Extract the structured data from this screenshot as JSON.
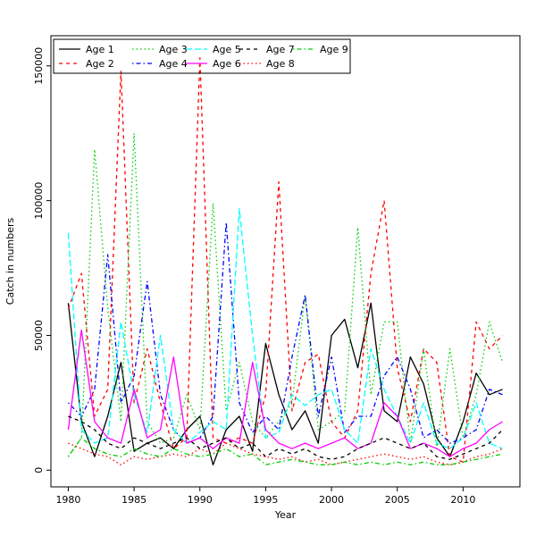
{
  "figure": {
    "background": "#ffffff"
  },
  "chart_data": {
    "type": "line",
    "title": "",
    "xlabel": "Year",
    "ylabel": "Catch in numbers",
    "xlim": [
      1980,
      2013
    ],
    "ylim": [
      0,
      155000
    ],
    "xticks": [
      1980,
      1985,
      1990,
      1995,
      2000,
      2005,
      2010
    ],
    "yticks": [
      0,
      50000,
      100000,
      150000
    ],
    "grid": false,
    "legend": {
      "position": "top-left",
      "ncol": 5,
      "order": "column-major"
    },
    "x": [
      1980,
      1981,
      1982,
      1983,
      1984,
      1985,
      1986,
      1987,
      1988,
      1989,
      1990,
      1991,
      1992,
      1993,
      1994,
      1995,
      1996,
      1997,
      1998,
      1999,
      2000,
      2001,
      2002,
      2003,
      2004,
      2005,
      2006,
      2007,
      2008,
      2009,
      2010,
      2011,
      2012,
      2013
    ],
    "series": [
      {
        "name": "Age 1",
        "color": "#000000",
        "linetype": "solid",
        "values": [
          62000,
          18000,
          5000,
          20000,
          40000,
          7000,
          10000,
          12000,
          8000,
          15000,
          20000,
          2000,
          15000,
          20000,
          7000,
          47000,
          28000,
          15000,
          22000,
          10000,
          50000,
          56000,
          38000,
          62000,
          22000,
          18000,
          42000,
          32000,
          12000,
          5000,
          18000,
          36000,
          28000,
          30000
        ]
      },
      {
        "name": "Age 2",
        "color": "#FF0000",
        "linetype": "dashed",
        "values": [
          60000,
          73000,
          20000,
          30000,
          148000,
          25000,
          45000,
          25000,
          8000,
          12000,
          153000,
          12000,
          10000,
          12000,
          10000,
          28000,
          107000,
          22000,
          40000,
          43000,
          18000,
          12000,
          22000,
          73000,
          100000,
          38000,
          18000,
          45000,
          40000,
          5000,
          3000,
          55000,
          45000,
          50000
        ]
      },
      {
        "name": "Age 3",
        "color": "#00CD00",
        "linetype": "dotted",
        "values": [
          5000,
          12000,
          119000,
          60000,
          18000,
          125000,
          18000,
          10000,
          12000,
          28000,
          15000,
          99000,
          22000,
          40000,
          18000,
          12000,
          18000,
          25000,
          65000,
          15000,
          18000,
          22000,
          90000,
          28000,
          55000,
          55000,
          10000,
          45000,
          8000,
          45000,
          12000,
          28000,
          55000,
          40000
        ]
      },
      {
        "name": "Age 4",
        "color": "#0000FF",
        "linetype": "dotdash",
        "values": [
          25000,
          20000,
          30000,
          80000,
          25000,
          35000,
          70000,
          28000,
          15000,
          10000,
          12000,
          20000,
          92000,
          25000,
          14000,
          20000,
          15000,
          42000,
          65000,
          20000,
          42000,
          14000,
          20000,
          20000,
          35000,
          42000,
          30000,
          12000,
          15000,
          10000,
          12000,
          15000,
          30000,
          28000
        ]
      },
      {
        "name": "Age 5",
        "color": "#00FFFF",
        "linetype": "longdash",
        "values": [
          88000,
          15000,
          10000,
          12000,
          55000,
          28000,
          14000,
          50000,
          15000,
          10000,
          14000,
          18000,
          15000,
          97000,
          50000,
          12000,
          14000,
          28000,
          24000,
          28000,
          30000,
          15000,
          10000,
          45000,
          30000,
          20000,
          10000,
          25000,
          10000,
          8000,
          12000,
          25000,
          10000,
          8000
        ]
      },
      {
        "name": "Age 6",
        "color": "#FF00FF",
        "linetype": "solid",
        "values": [
          15000,
          52000,
          18000,
          12000,
          10000,
          30000,
          12000,
          15000,
          42000,
          10000,
          12000,
          8000,
          12000,
          10000,
          40000,
          15000,
          10000,
          8000,
          10000,
          8000,
          10000,
          12000,
          8000,
          10000,
          25000,
          20000,
          8000,
          10000,
          8000,
          5000,
          8000,
          10000,
          15000,
          18000
        ]
      },
      {
        "name": "Age 7",
        "color": "#000000",
        "linetype": "dashed",
        "values": [
          20000,
          18000,
          15000,
          10000,
          8000,
          12000,
          10000,
          8000,
          10000,
          12000,
          8000,
          10000,
          12000,
          8000,
          10000,
          5000,
          8000,
          6000,
          8000,
          5000,
          4000,
          5000,
          8000,
          10000,
          12000,
          10000,
          8000,
          10000,
          5000,
          4000,
          6000,
          8000,
          10000,
          15000
        ]
      },
      {
        "name": "Age 8",
        "color": "#FF0000",
        "linetype": "dotted",
        "values": [
          10000,
          8000,
          6000,
          5000,
          2000,
          5000,
          4000,
          5000,
          6000,
          5000,
          8000,
          6000,
          10000,
          8000,
          6000,
          5000,
          4000,
          5000,
          3000,
          4000,
          2000,
          3000,
          4000,
          5000,
          6000,
          5000,
          4000,
          5000,
          3000,
          2000,
          3000,
          5000,
          6000,
          8000
        ]
      },
      {
        "name": "Age 9",
        "color": "#00CD00",
        "linetype": "dotdash",
        "values": [
          5000,
          12000,
          8000,
          6000,
          5000,
          8000,
          6000,
          5000,
          8000,
          6000,
          5000,
          6000,
          8000,
          5000,
          6000,
          2000,
          3000,
          4000,
          3000,
          2000,
          2000,
          3000,
          2000,
          3000,
          2000,
          3000,
          2000,
          3000,
          2000,
          2000,
          3000,
          4000,
          5000,
          6000
        ]
      }
    ]
  }
}
